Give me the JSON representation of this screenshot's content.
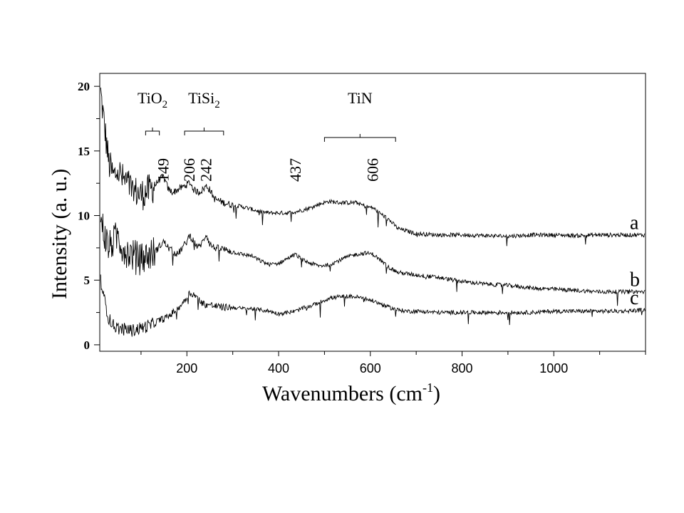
{
  "chart_data": {
    "type": "line",
    "title": "",
    "xlabel": "Wavenumbers (cm-1)",
    "xlabel_parts": {
      "main": "Wavenumbers (cm",
      "sup": "-1",
      "close": ")"
    },
    "ylabel": "Intensity (a. u.)",
    "xlim": [
      10,
      1200
    ],
    "ylim": [
      -0.5,
      21
    ],
    "x_ticks": [
      200,
      400,
      600,
      800,
      1000
    ],
    "x_tick_labels": [
      "200",
      "400",
      "600",
      "800",
      "1000"
    ],
    "y_ticks": [
      0,
      5,
      10,
      15,
      20
    ],
    "y_tick_labels": [
      "0",
      "5",
      "10",
      "15",
      "20"
    ],
    "grid": false,
    "series": [
      {
        "name": "a",
        "x": [
          12,
          20,
          30,
          40,
          50,
          60,
          70,
          80,
          90,
          100,
          110,
          120,
          130,
          140,
          149,
          160,
          170,
          180,
          190,
          200,
          206,
          215,
          225,
          235,
          242,
          250,
          260,
          280,
          300,
          320,
          340,
          360,
          380,
          400,
          420,
          437,
          450,
          470,
          490,
          510,
          530,
          550,
          570,
          590,
          606,
          620,
          640,
          660,
          680,
          700,
          750,
          800,
          850,
          900,
          950,
          1000,
          1050,
          1100,
          1150,
          1200
        ],
        "values": [
          19.5,
          17.0,
          14.0,
          13.0,
          13.5,
          12.8,
          12.5,
          12.0,
          11.8,
          11.6,
          11.8,
          12.0,
          12.3,
          12.8,
          13.0,
          12.0,
          11.8,
          12.0,
          12.2,
          12.4,
          12.6,
          12.0,
          11.8,
          12.0,
          12.3,
          12.0,
          11.3,
          11.0,
          10.8,
          10.7,
          10.5,
          10.3,
          10.2,
          10.2,
          10.2,
          10.3,
          10.4,
          10.6,
          10.9,
          11.1,
          11.0,
          11.0,
          11.0,
          10.7,
          10.6,
          10.2,
          9.7,
          9.0,
          8.8,
          8.6,
          8.5,
          8.5,
          8.45,
          8.4,
          8.5,
          8.5,
          8.45,
          8.5,
          8.5,
          8.5
        ]
      },
      {
        "name": "b",
        "x": [
          12,
          20,
          30,
          40,
          50,
          60,
          70,
          80,
          90,
          100,
          110,
          120,
          130,
          140,
          149,
          160,
          170,
          180,
          190,
          200,
          206,
          215,
          225,
          235,
          242,
          250,
          260,
          280,
          300,
          320,
          340,
          360,
          380,
          400,
          420,
          437,
          450,
          470,
          490,
          510,
          530,
          550,
          570,
          590,
          606,
          620,
          640,
          660,
          680,
          700,
          750,
          800,
          850,
          900,
          950,
          1000,
          1050,
          1100,
          1150,
          1200
        ],
        "values": [
          10.0,
          8.5,
          7.5,
          8.0,
          8.5,
          7.5,
          7.2,
          7.0,
          6.8,
          6.6,
          6.8,
          7.0,
          7.2,
          7.6,
          8.0,
          7.5,
          7.2,
          7.0,
          7.5,
          8.0,
          8.5,
          8.0,
          7.5,
          8.0,
          8.6,
          7.8,
          7.5,
          7.4,
          7.2,
          7.0,
          6.9,
          6.5,
          6.2,
          6.3,
          6.7,
          7.0,
          6.6,
          6.3,
          6.1,
          6.2,
          6.5,
          6.8,
          7.0,
          7.1,
          7.0,
          6.6,
          6.0,
          5.6,
          5.5,
          5.4,
          5.2,
          4.9,
          4.7,
          4.6,
          4.4,
          4.3,
          4.2,
          4.1,
          4.1,
          4.1
        ]
      },
      {
        "name": "c",
        "x": [
          12,
          20,
          30,
          40,
          50,
          60,
          70,
          80,
          90,
          100,
          110,
          120,
          130,
          140,
          149,
          160,
          170,
          180,
          190,
          200,
          206,
          215,
          225,
          235,
          242,
          250,
          260,
          280,
          300,
          320,
          340,
          360,
          380,
          400,
          420,
          437,
          450,
          470,
          490,
          510,
          530,
          550,
          570,
          590,
          606,
          620,
          640,
          660,
          680,
          700,
          750,
          800,
          850,
          900,
          950,
          1000,
          1050,
          1100,
          1150,
          1200
        ],
        "values": [
          5.0,
          3.5,
          2.0,
          1.5,
          1.3,
          1.2,
          1.2,
          1.1,
          1.2,
          1.3,
          1.4,
          1.5,
          1.7,
          1.9,
          2.0,
          2.2,
          2.5,
          2.8,
          3.2,
          3.7,
          4.0,
          3.9,
          3.5,
          3.2,
          3.1,
          3.1,
          3.0,
          2.9,
          2.9,
          2.8,
          2.8,
          2.7,
          2.6,
          2.4,
          2.5,
          2.6,
          2.8,
          3.0,
          3.3,
          3.6,
          3.7,
          3.75,
          3.7,
          3.55,
          3.4,
          3.2,
          2.9,
          2.7,
          2.6,
          2.6,
          2.5,
          2.5,
          2.5,
          2.5,
          2.5,
          2.6,
          2.6,
          2.6,
          2.6,
          2.7
        ]
      }
    ],
    "annotations": {
      "groups": [
        {
          "label_main": "TiO",
          "label_sub": "2",
          "x_range": [
            110,
            140
          ]
        },
        {
          "label_main": "TiSi",
          "label_sub": "2",
          "x_range": [
            195,
            280
          ]
        },
        {
          "label_main": "TiN",
          "label_sub": "",
          "x_range": [
            500,
            655
          ]
        }
      ],
      "peaks": [
        {
          "label": "149",
          "x": 149
        },
        {
          "label": "206",
          "x": 206
        },
        {
          "label": "242",
          "x": 242
        },
        {
          "label": "437",
          "x": 437
        },
        {
          "label": "606",
          "x": 606
        }
      ]
    }
  }
}
